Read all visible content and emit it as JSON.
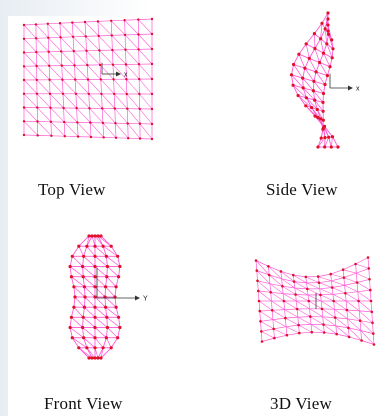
{
  "views": {
    "top": {
      "label": "Top View",
      "axis_label": "x"
    },
    "side": {
      "label": "Side View",
      "axis_label": "x"
    },
    "front": {
      "label": "Front View",
      "axis_label": "Y"
    },
    "iso": {
      "label": "3D View"
    }
  },
  "colors": {
    "mesh": "#ff5ad6",
    "node": "#e0102a",
    "axis": "#333333",
    "background": "#ffffff"
  }
}
